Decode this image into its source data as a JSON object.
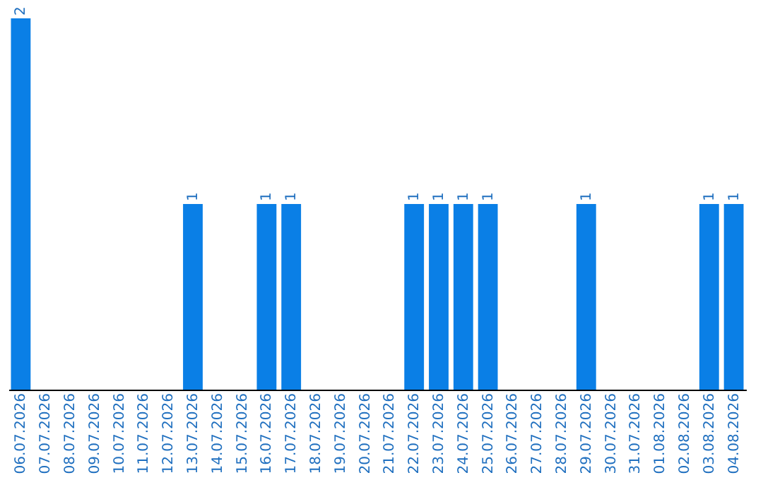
{
  "chart_data": {
    "type": "bar",
    "categories": [
      "06.07.2026",
      "07.07.2026",
      "08.07.2026",
      "09.07.2026",
      "10.07.2026",
      "11.07.2026",
      "12.07.2026",
      "13.07.2026",
      "14.07.2026",
      "15.07.2026",
      "16.07.2026",
      "17.07.2026",
      "18.07.2026",
      "19.07.2026",
      "20.07.2026",
      "21.07.2026",
      "22.07.2026",
      "23.07.2026",
      "24.07.2026",
      "25.07.2026",
      "26.07.2026",
      "27.07.2026",
      "28.07.2026",
      "29.07.2026",
      "30.07.2026",
      "31.07.2026",
      "01.08.2026",
      "02.08.2026",
      "03.08.2026",
      "04.08.2026"
    ],
    "values": [
      2,
      0,
      0,
      0,
      0,
      0,
      0,
      1,
      0,
      0,
      1,
      1,
      0,
      0,
      0,
      0,
      1,
      1,
      1,
      1,
      0,
      0,
      0,
      1,
      0,
      0,
      0,
      0,
      1,
      1
    ],
    "value_labels": [
      "2",
      null,
      null,
      null,
      null,
      null,
      null,
      "1",
      null,
      null,
      "1",
      "1",
      null,
      null,
      null,
      null,
      "1",
      "1",
      "1",
      "1",
      null,
      null,
      null,
      "1",
      null,
      null,
      null,
      null,
      "1",
      "1"
    ],
    "color": "#0a7fe6",
    "tick_labels": "x",
    "grid": false
  }
}
